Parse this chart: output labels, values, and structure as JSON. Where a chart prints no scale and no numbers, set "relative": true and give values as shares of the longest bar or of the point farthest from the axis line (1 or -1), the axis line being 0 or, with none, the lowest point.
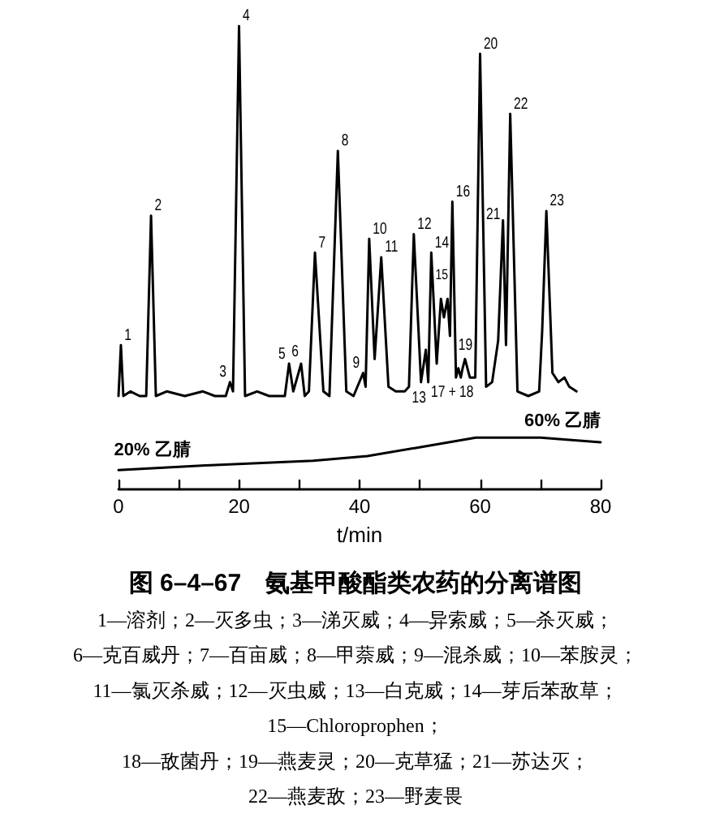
{
  "chart_data": {
    "type": "line",
    "relative": true,
    "title": "图 6–4–67　氨基甲酸酯类农药的分离谱图",
    "xlabel": "t/min",
    "xlim": [
      0,
      80
    ],
    "xticks": [
      0,
      {
        "value": 10,
        "label": null
      },
      20,
      {
        "value": 30,
        "label": null
      },
      40,
      {
        "value": 50,
        "label": null
      },
      60,
      {
        "value": 70,
        "label": null
      },
      80
    ],
    "line_style": "solid",
    "series": [
      {
        "color": "#000000",
        "x": [
          0,
          0.4,
          0.8,
          2,
          3.5,
          4.6,
          5.4,
          6.2,
          8,
          11,
          14,
          16,
          17.8,
          18.5,
          19.0,
          20.0,
          21.0,
          23,
          25,
          27.6,
          28.3,
          29.0,
          30.3,
          30.9,
          31.6,
          32.6,
          34.0,
          35.0,
          36.4,
          37.8,
          39.0,
          40.6,
          41.0,
          41.6,
          42.5,
          43.6,
          44.8,
          46,
          47.5,
          48.2,
          49.0,
          50.2,
          51.0,
          51.4,
          51.9,
          52.8,
          53.5,
          54.0,
          54.6,
          55.0,
          55.4,
          56.0,
          56.4,
          56.8,
          57.1,
          57.5,
          58.3,
          59.2,
          60.0,
          61.0,
          62.0,
          63.0,
          63.8,
          64.3,
          65.0,
          66.2,
          68,
          69.8,
          70.3,
          71.0,
          72.0,
          73.0,
          74.0,
          74.8,
          76.0
        ],
        "values": [
          0.2,
          0.31,
          0.2,
          0.21,
          0.2,
          0.2,
          0.59,
          0.2,
          0.21,
          0.2,
          0.21,
          0.2,
          0.2,
          0.23,
          0.21,
          1.0,
          0.2,
          0.21,
          0.2,
          0.2,
          0.27,
          0.21,
          0.27,
          0.2,
          0.21,
          0.51,
          0.21,
          0.2,
          0.73,
          0.21,
          0.2,
          0.25,
          0.22,
          0.54,
          0.28,
          0.5,
          0.22,
          0.21,
          0.21,
          0.22,
          0.55,
          0.23,
          0.3,
          0.23,
          0.51,
          0.27,
          0.41,
          0.37,
          0.41,
          0.33,
          0.62,
          0.24,
          0.26,
          0.24,
          0.26,
          0.28,
          0.24,
          0.24,
          0.94,
          0.22,
          0.23,
          0.32,
          0.58,
          0.31,
          0.81,
          0.21,
          0.2,
          0.21,
          0.34,
          0.6,
          0.25,
          0.23,
          0.24,
          0.22,
          0.21
        ]
      },
      {
        "color": "#000000",
        "x": [
          0,
          14.4,
          32.3,
          41.3,
          50.3,
          59.3,
          64.6,
          70,
          80
        ],
        "values": [
          0.04,
          0.05,
          0.06,
          0.07,
          0.09,
          0.11,
          0.11,
          0.11,
          0.1
        ]
      }
    ],
    "annotations": [
      {
        "text": "1",
        "x": 0.4,
        "y": 0.31
      },
      {
        "text": "2",
        "x": 5.4,
        "y": 0.59
      },
      {
        "text": "3",
        "x": 18.5,
        "y": 0.23
      },
      {
        "text": "4",
        "x": 20,
        "y": 1.0
      },
      {
        "text": "5",
        "x": 28.3,
        "y": 0.27
      },
      {
        "text": "6",
        "x": 30.3,
        "y": 0.27
      },
      {
        "text": "7",
        "x": 32.6,
        "y": 0.51
      },
      {
        "text": "8",
        "x": 36.4,
        "y": 0.73
      },
      {
        "text": "9",
        "x": 40.6,
        "y": 0.25
      },
      {
        "text": "10",
        "x": 41.6,
        "y": 0.54
      },
      {
        "text": "11",
        "x": 43.6,
        "y": 0.5
      },
      {
        "text": "12",
        "x": 49,
        "y": 0.55
      },
      {
        "text": "13",
        "x": 51,
        "y": 0.3
      },
      {
        "text": "14",
        "x": 51.9,
        "y": 0.51
      },
      {
        "text": "15",
        "x": 53.5,
        "y": 0.41
      },
      {
        "text": "16",
        "x": 55.4,
        "y": 0.62
      },
      {
        "text": "17 + 18",
        "x": 56.4,
        "y": 0.26
      },
      {
        "text": "19",
        "x": 57.5,
        "y": 0.28
      },
      {
        "text": "20",
        "x": 60,
        "y": 0.94
      },
      {
        "text": "21",
        "x": 63.8,
        "y": 0.58
      },
      {
        "text": "22",
        "x": 65,
        "y": 0.81
      },
      {
        "text": "23",
        "x": 71,
        "y": 0.6
      },
      {
        "text": "20% 乙腈",
        "x": 0,
        "y": 0.04
      },
      {
        "text": "60% 乙腈",
        "x": 80,
        "y": 0.1
      },
      "1—溶剂；2—灭多虫；3—涕灭威；4—异索威；5—杀灭威；",
      "6—克百威丹；7—百亩威；8—甲萘威；9—混杀威；10—苯胺灵；",
      "11—氯灭杀威；12—灭虫威；13—白克威；14—芽后苯敌草；",
      "15—Chloroprophen；",
      "18—敌菌丹；19—燕麦灵；20—克草猛；21—苏达灭；",
      "22—燕麦敌；23—野麦畏"
    ]
  }
}
